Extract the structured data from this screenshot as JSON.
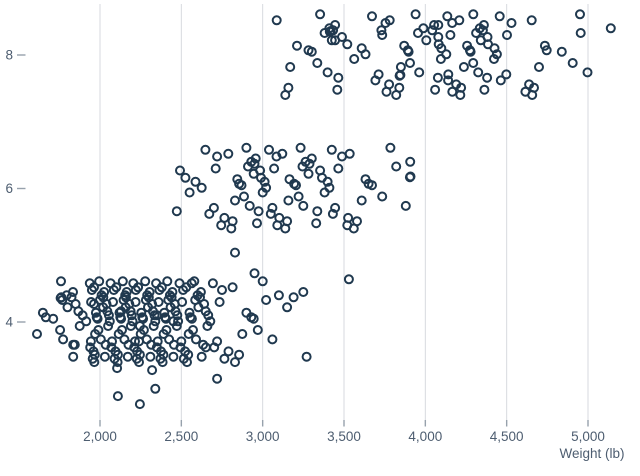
{
  "chart_data": {
    "type": "scatter",
    "title": "",
    "description": "Jittered strip scatter plot of car weight (lb) versus number of cylinders (4, 6, 8 with a few 3- and 5-cylinder outliers)",
    "x_axis": {
      "label": "Weight (lb)",
      "tick_values": [
        2000,
        2500,
        3000,
        3500,
        4000,
        4500,
        5000
      ],
      "tick_labels": [
        "2,000",
        "2,500",
        "3,000",
        "3,500",
        "4,000",
        "4,500",
        "5,000"
      ],
      "domain": [
        1580,
        5270
      ],
      "grid": true
    },
    "y_axis": {
      "label": "",
      "tick_values": [
        8,
        6,
        4
      ],
      "tick_labels": [
        "8",
        "6",
        "4"
      ],
      "domain": [
        2.5,
        8.7
      ],
      "grid": false
    },
    "legend": "none",
    "marker": {
      "shape": "open-circle",
      "radius": 4,
      "stroke_width": 2,
      "color": "#20394f"
    },
    "style": {
      "background": "#ffffff",
      "grid_color": "#d7dadf",
      "tick_color": "#97a1ac",
      "label_color": "#4d5d70"
    },
    "jitter_cycle": [
      0.05,
      -0.34,
      0.48,
      -0.12,
      0.27,
      -0.55,
      0.61,
      0.16,
      -0.44,
      0.33,
      -0.06,
      0.52,
      -0.26,
      0.1,
      -0.6,
      0.4,
      0.01,
      -0.49,
      0.22,
      0.58,
      -0.18,
      0.37,
      -0.38,
      0.14,
      0.45,
      -0.29,
      0.07,
      -0.52,
      0.3
    ],
    "groups": [
      {
        "cylinders": 3,
        "weights": [
          2110,
          2245,
          2340,
          2720
        ],
        "y_values": [
          2.89,
          2.77,
          3.0,
          3.15
        ]
      },
      {
        "cylinders": 5,
        "weights": [
          2830,
          2950,
          3530
        ],
        "y_values": [
          5.04,
          4.73,
          4.64
        ]
      },
      {
        "cylinders": 4,
        "weights": [
          1613,
          1649,
          1667,
          1712,
          1755,
          1760,
          1768,
          1773,
          1795,
          1800,
          1825,
          1834,
          1835,
          1845,
          1850,
          1867,
          1875,
          1893,
          1915,
          1937,
          1940,
          1944,
          1945,
          1950,
          1955,
          1960,
          1963,
          1965,
          1968,
          1970,
          1975,
          1980,
          1985,
          1990,
          1995,
          2000,
          2005,
          2010,
          2019,
          2020,
          2025,
          2030,
          2035,
          2040,
          2045,
          2050,
          2055,
          2060,
          2065,
          2070,
          2074,
          2080,
          2085,
          2090,
          2095,
          2100,
          2108,
          2110,
          2115,
          2120,
          2125,
          2130,
          2135,
          2140,
          2145,
          2150,
          2155,
          2158,
          2160,
          2164,
          2171,
          2175,
          2180,
          2188,
          2190,
          2195,
          2200,
          2205,
          2210,
          2215,
          2219,
          2220,
          2226,
          2228,
          2234,
          2240,
          2245,
          2250,
          2254,
          2260,
          2265,
          2270,
          2278,
          2282,
          2288,
          2290,
          2295,
          2300,
          2305,
          2310,
          2315,
          2320,
          2325,
          2330,
          2335,
          2340,
          2345,
          2350,
          2355,
          2360,
          2365,
          2372,
          2375,
          2380,
          2385,
          2390,
          2391,
          2395,
          2400,
          2405,
          2408,
          2414,
          2420,
          2425,
          2430,
          2434,
          2440,
          2445,
          2451,
          2455,
          2460,
          2464,
          2472,
          2475,
          2480,
          2489,
          2495,
          2500,
          2505,
          2511,
          2515,
          2523,
          2530,
          2535,
          2542,
          2545,
          2550,
          2556,
          2565,
          2572,
          2580,
          2585,
          2590,
          2600,
          2605,
          2615,
          2620,
          2625,
          2634,
          2640,
          2650,
          2660,
          2665,
          2678,
          2694,
          2702,
          2720,
          2735,
          2750,
          2765,
          2790,
          2815,
          2830,
          2855,
          2875,
          2900,
          2930,
          2945,
          2970,
          3000,
          3021,
          3060,
          3100,
          3150,
          3190,
          3250,
          3270,
          1835,
          1963,
          2130,
          2245,
          2350,
          2451,
          2564,
          2651,
          2240
        ]
      },
      {
        "cylinders": 6,
        "weights": [
          2472,
          2492,
          2525,
          2551,
          2587,
          2625,
          2648,
          2672,
          2700,
          2711,
          2720,
          2745,
          2765,
          2789,
          2807,
          2815,
          2830,
          2844,
          2855,
          2870,
          2885,
          2900,
          2910,
          2920,
          2930,
          2945,
          2950,
          2957,
          2965,
          2975,
          2984,
          2990,
          3000,
          3012,
          3021,
          3039,
          3050,
          3060,
          3070,
          3085,
          3090,
          3102,
          3121,
          3139,
          3150,
          3158,
          3165,
          3193,
          3205,
          3221,
          3233,
          3245,
          3250,
          3264,
          3282,
          3288,
          3302,
          3329,
          3336,
          3353,
          3365,
          3381,
          3399,
          3410,
          3425,
          3432,
          3445,
          3465,
          3488,
          3520,
          3525,
          3535,
          3560,
          3580,
          3609,
          3632,
          3651,
          3672,
          3735,
          3785,
          3821,
          3880,
          3907
        ]
      },
      {
        "cylinders": 8,
        "weights": [
          3086,
          3139,
          3158,
          3169,
          3211,
          3282,
          3302,
          3336,
          3353,
          3381,
          3399,
          3410,
          3425,
          3433,
          3445,
          3459,
          3465,
          3488,
          3520,
          3563,
          3609,
          3632,
          3672,
          3693,
          3713,
          3735,
          3755,
          3761,
          3777,
          3781,
          3821,
          3840,
          3850,
          3870,
          3892,
          3897,
          3906,
          3940,
          3955,
          3962,
          3988,
          4006,
          4042,
          4054,
          4060,
          4077,
          4080,
          4082,
          4096,
          4098,
          4129,
          4135,
          4140,
          4141,
          4154,
          4165,
          4166,
          4190,
          4209,
          4215,
          4220,
          4237,
          4257,
          4274,
          4278,
          4294,
          4295,
          4312,
          4325,
          4335,
          4341,
          4354,
          4360,
          4363,
          4380,
          4382,
          4385,
          4422,
          4425,
          4440,
          4457,
          4464,
          4498,
          4502,
          4530,
          4615,
          4638,
          4654,
          4657,
          4668,
          4699,
          4735,
          4746,
          4839,
          4906,
          4951,
          4955,
          4997,
          5140,
          3445,
          3730,
          4080
        ]
      }
    ],
    "extra_points": [
      [
        2105,
        3.31
      ],
      [
        2320,
        3.28
      ],
      [
        3905,
        6.17
      ],
      [
        3909,
        6.18
      ],
      [
        3413,
        8.35
      ],
      [
        3418,
        8.36
      ],
      [
        3842,
        7.69
      ],
      [
        3847,
        7.7
      ],
      [
        1758,
        4.36
      ],
      [
        1762,
        4.37
      ]
    ]
  }
}
